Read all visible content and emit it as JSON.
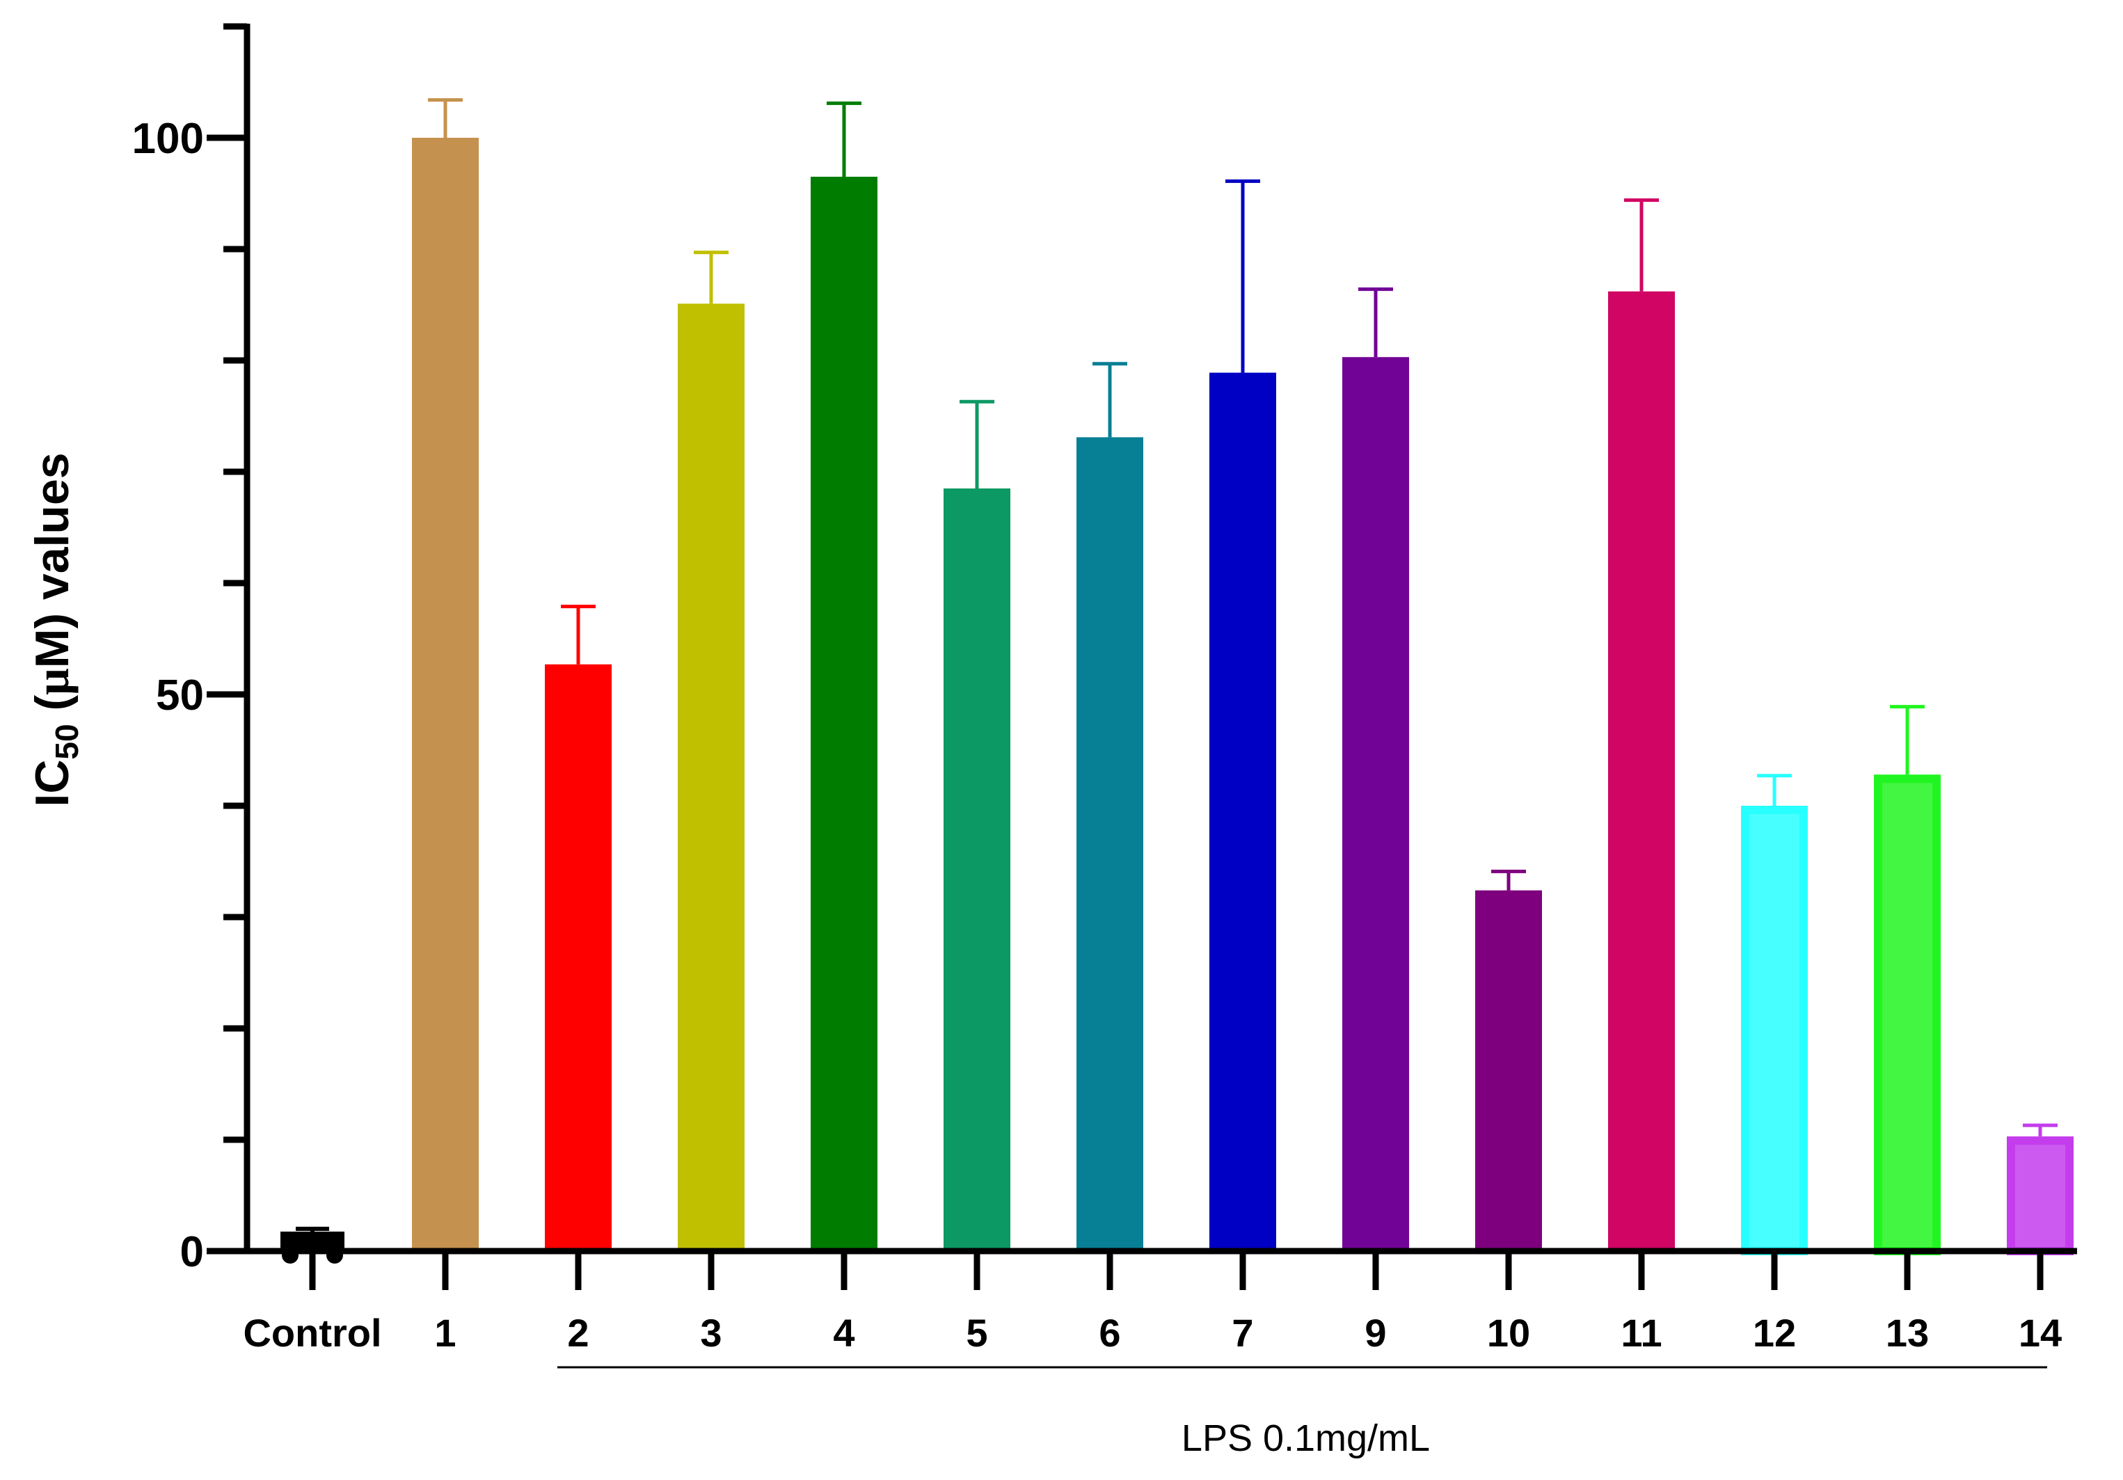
{
  "chart_data": {
    "type": "bar",
    "title": "",
    "ylabel_parts": {
      "prefix": "IC",
      "subscript": "50",
      "open": " (",
      "mu": "μ",
      "unit": "M) values"
    },
    "xlabel": "",
    "ylim": [
      0,
      110
    ],
    "yticks": [
      0,
      50,
      100
    ],
    "ymajor_step": 50,
    "yminor_step": 10,
    "categories": [
      "Control",
      "1",
      "2",
      "3",
      "4",
      "5",
      "6",
      "7",
      "9",
      "10",
      "11",
      "12",
      "13",
      "14"
    ],
    "values": [
      1.5,
      100,
      52.7,
      85.1,
      96.5,
      68.5,
      73.1,
      78.9,
      80.3,
      32.4,
      86.2,
      40.0,
      42.8,
      10.3
    ],
    "errors": [
      0.5,
      3.4,
      5.2,
      4.6,
      6.6,
      7.8,
      6.6,
      17.2,
      6.1,
      1.7,
      8.2,
      2.7,
      6.1,
      1.0
    ],
    "colors": [
      "#000000",
      "#c4924e",
      "#ff0000",
      "#c0c000",
      "#007d00",
      "#0c9964",
      "#077f95",
      "#0000c4",
      "#710496",
      "#7e007e",
      "#d10563",
      "#28ffff",
      "#21f521",
      "#c43ded"
    ],
    "hollow": [
      false,
      false,
      false,
      false,
      false,
      false,
      false,
      false,
      false,
      false,
      false,
      true,
      true,
      true
    ],
    "group_annotation": {
      "label": "LPS 0.1mg/mL",
      "from_category": "2",
      "to_category": "14"
    }
  }
}
